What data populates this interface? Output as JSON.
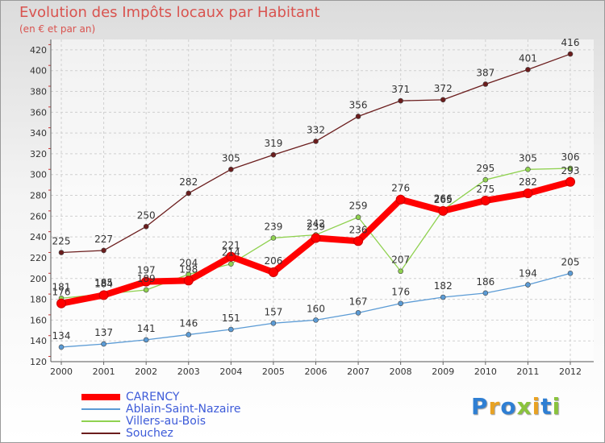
{
  "title": "Evolution des Impôts locaux par Habitant",
  "subtitle": "(en € et par an)",
  "logo": {
    "text": "Proxiti",
    "colors": [
      "#2f7fd3",
      "#e8a223",
      "#2f7fd3",
      "#8ac33d",
      "#e8a223",
      "#2f7fd3",
      "#8ac33d"
    ]
  },
  "chart_data": {
    "type": "line",
    "title": "Evolution des Impôts locaux par Habitant",
    "subtitle": "(en € et par an)",
    "xlabel": "",
    "ylabel": "",
    "ylim": [
      120,
      430
    ],
    "yticks": [
      120,
      140,
      160,
      180,
      200,
      220,
      240,
      260,
      280,
      300,
      320,
      340,
      360,
      380,
      400,
      420
    ],
    "grid": true,
    "legend_position": "bottom-left",
    "categories": [
      "2000",
      "2001",
      "2002",
      "2003",
      "2004",
      "2005",
      "2006",
      "2007",
      "2008",
      "2009",
      "2010",
      "2011",
      "2012"
    ],
    "series": [
      {
        "name": "CARENCY",
        "color": "#ff0000",
        "values": [
          176,
          184,
          197,
          198,
          221,
          206,
          239,
          236,
          276,
          265,
          275,
          282,
          293
        ]
      },
      {
        "name": "Ablain-Saint-Nazaire",
        "color": "#5b9bd5",
        "values": [
          134,
          137,
          141,
          146,
          151,
          157,
          160,
          167,
          176,
          182,
          186,
          194,
          205
        ]
      },
      {
        "name": "Villers-au-Bois",
        "color": "#8fd14f",
        "values": [
          181,
          185,
          189,
          204,
          214,
          239,
          242,
          259,
          207,
          266,
          295,
          305,
          306
        ]
      },
      {
        "name": "Souchez",
        "color": "#6b1d1d",
        "values": [
          225,
          227,
          250,
          282,
          305,
          319,
          332,
          356,
          371,
          372,
          387,
          401,
          416
        ]
      }
    ]
  }
}
